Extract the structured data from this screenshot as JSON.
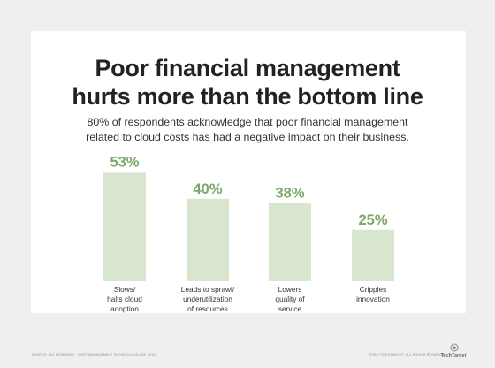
{
  "chart_data": {
    "type": "bar",
    "title": "Poor financial management hurts more than the bottom line",
    "subtitle": "80% of respondents acknowledge that poor financial management related to cloud costs has had a negative impact on their business.",
    "categories": [
      "Slows/\nhalts cloud\nadoption",
      "Leads to sprawl/\nunderutilization\nof resources",
      "Lowers\nquality of\nservice",
      "Cripples\ninnovation"
    ],
    "values": [
      53,
      40,
      38,
      25
    ],
    "value_labels": [
      "53%",
      "40%",
      "38%",
      "25%"
    ],
    "xlabel": "",
    "ylabel": "",
    "ylim": [
      0,
      100
    ],
    "grid": false,
    "legend": "none"
  },
  "page": {
    "title_lines": [
      "Poor financial management",
      "hurts more than the bottom line"
    ],
    "subtitle_lines": [
      "80% of respondents acknowledge that poor financial management",
      "related to cloud costs has had a negative impact on their business."
    ],
    "source": "SOURCE: 451 RESEARCH · COST MANAGEMENT IN THE CLOUD AGE 2019",
    "copyright": "©2020 TECHTARGET. ALL RIGHTS RESERVED",
    "logo_text": "TechTarget"
  },
  "colors": {
    "bar": "#d8e6cf",
    "value_label": "#7aa868",
    "background": "#efefef",
    "card": "#ffffff"
  }
}
